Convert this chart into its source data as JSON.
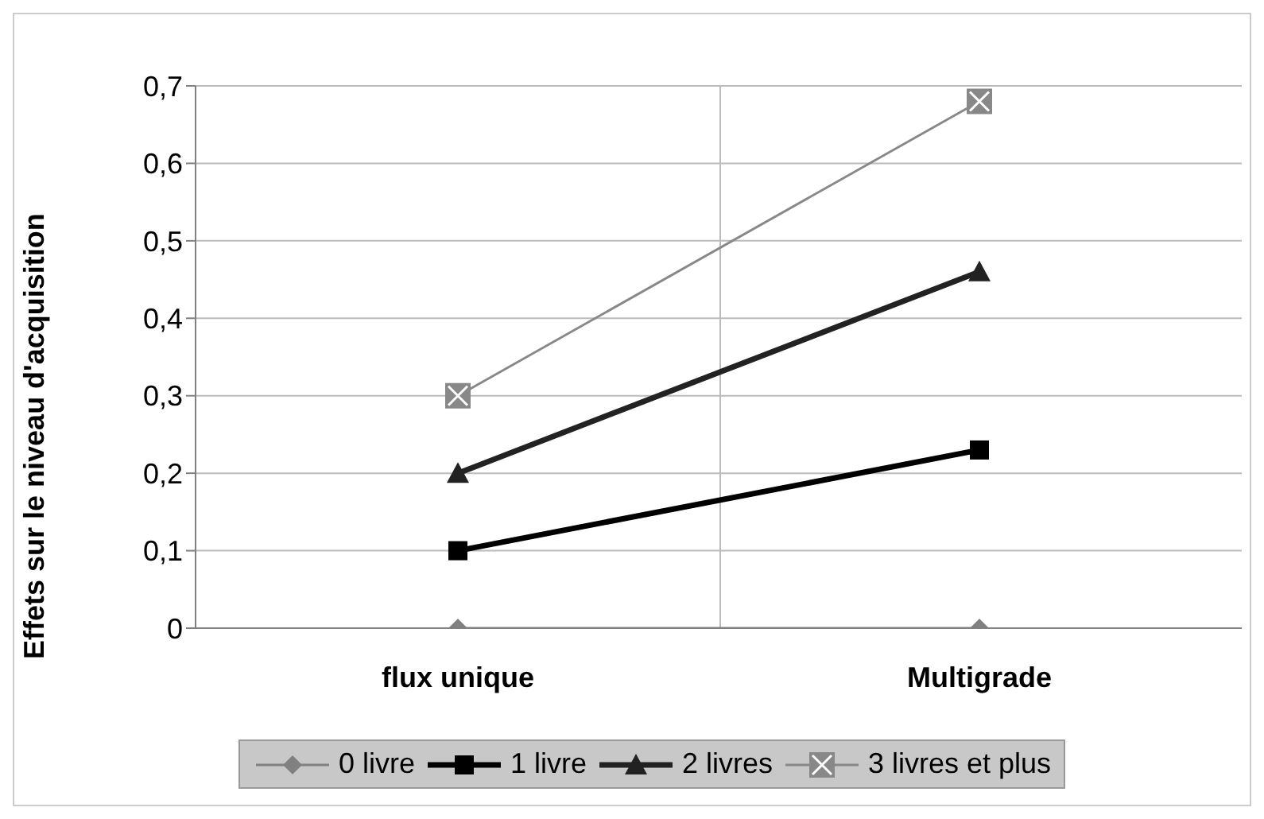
{
  "chart_data": {
    "type": "line",
    "ylabel": "Effets sur le niveau d'acquisition",
    "categories": [
      "flux unique",
      "Multigrade"
    ],
    "series": [
      {
        "name": "0 livre",
        "color": "#808080",
        "values": [
          0,
          0
        ],
        "marker": "diamond"
      },
      {
        "name": "1 livre",
        "color": "#000000",
        "values": [
          0.1,
          0.23
        ],
        "marker": "square"
      },
      {
        "name": "2 livres",
        "color": "#222222",
        "values": [
          0.2,
          0.46
        ],
        "marker": "triangle"
      },
      {
        "name": "3 livres et plus",
        "color": "#888888",
        "values": [
          0.3,
          0.68
        ],
        "marker": "square"
      }
    ],
    "ylim": [
      0,
      0.7
    ],
    "yticks": [
      0,
      {
        "value": 0.1,
        "label": "0,1"
      },
      {
        "value": 0.2,
        "label": "0,2"
      },
      {
        "value": 0.3,
        "label": "0,3"
      },
      {
        "value": 0.4,
        "label": "0,4"
      },
      {
        "value": 0.5,
        "label": "0,5"
      },
      {
        "value": 0.6,
        "label": "0,6"
      },
      {
        "value": 0.7,
        "label": "0,7"
      }
    ],
    "grid": true,
    "legend": "bottom"
  }
}
